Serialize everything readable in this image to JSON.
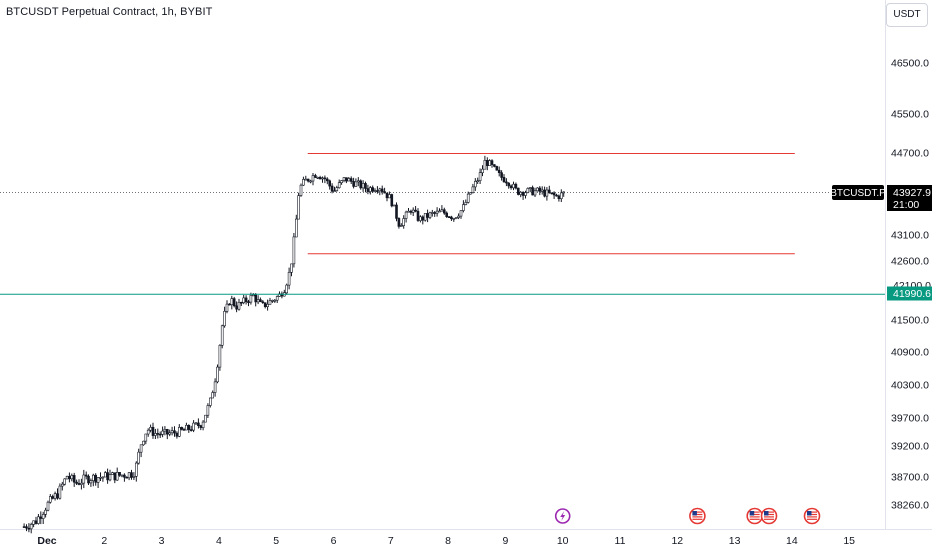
{
  "chart_title": "BTCUSDT Perpetual Contract, 1h, BYBIT",
  "currency_label": "USDT",
  "symbol_tag": "BTCUSDT.P",
  "last_price": "43927.9",
  "countdown": "21:00",
  "support_price": "41990.6",
  "partial_label": "42100.0",
  "colors": {
    "candle": "#131722",
    "resistance_line": "#e53935",
    "support_line": "#089981",
    "price_tag_bg": "#000000",
    "axis_text": "#131722",
    "axis_border": "#e0e3eb",
    "flash_event": "#9c27b0",
    "flag_event": "#e53935"
  },
  "events": {
    "flash_icon": "lightning-icon",
    "flag_icon": "us-flag-icon"
  },
  "chart_data": {
    "type": "candlestick",
    "timeframe": "1h",
    "y_ticks": [
      46500,
      45500,
      44700,
      43100,
      42600,
      41500,
      40900,
      40300,
      39700,
      39200,
      38700,
      38260
    ],
    "y_tick_labels": [
      "46500.0",
      "45500.0",
      "44700.0",
      "43100.0",
      "42600.0",
      "41500.0",
      "40900.0",
      "40300.0",
      "39700.0",
      "39200.0",
      "38700.0",
      "38260.0"
    ],
    "x_tick_labels": [
      "Dec",
      "2",
      "3",
      "4",
      "5",
      "6",
      "7",
      "8",
      "9",
      "10",
      "11",
      "12",
      "13",
      "14",
      "15"
    ],
    "x_tick_days": [
      1,
      2,
      3,
      4,
      5,
      6,
      7,
      8,
      9,
      10,
      11,
      12,
      13,
      14,
      15
    ],
    "horizontal_levels": [
      {
        "label": "resistance",
        "price": 44700,
        "from_day": 5.55,
        "to_day": 14.05
      },
      {
        "label": "range-support",
        "price": 42750,
        "from_day": 5.55,
        "to_day": 14.05
      },
      {
        "label": "support",
        "price": 41990.6,
        "full_width": true
      }
    ],
    "event_markers": [
      {
        "type": "flash",
        "day": 10.0
      },
      {
        "type": "flag",
        "day": 12.35
      },
      {
        "type": "flag",
        "day": 13.35
      },
      {
        "type": "flag",
        "day": 13.6
      },
      {
        "type": "flag",
        "day": 14.35
      }
    ],
    "price_anchors": [
      [
        0.6,
        37920
      ],
      [
        0.8,
        38000
      ],
      [
        1.0,
        38260
      ],
      [
        1.2,
        38450
      ],
      [
        1.35,
        38720
      ],
      [
        1.5,
        38600
      ],
      [
        1.7,
        38680
      ],
      [
        1.9,
        38700
      ],
      [
        2.2,
        38720
      ],
      [
        2.5,
        38760
      ],
      [
        2.55,
        38850
      ],
      [
        2.65,
        39280
      ],
      [
        2.75,
        39500
      ],
      [
        2.9,
        39420
      ],
      [
        3.1,
        39420
      ],
      [
        3.3,
        39450
      ],
      [
        3.5,
        39520
      ],
      [
        3.7,
        39600
      ],
      [
        3.85,
        40000
      ],
      [
        3.95,
        40500
      ],
      [
        4.0,
        40900
      ],
      [
        4.05,
        41350
      ],
      [
        4.1,
        41600
      ],
      [
        4.2,
        41900
      ],
      [
        4.3,
        41750
      ],
      [
        4.45,
        41850
      ],
      [
        4.6,
        41950
      ],
      [
        4.75,
        41750
      ],
      [
        4.9,
        41850
      ],
      [
        5.05,
        41950
      ],
      [
        5.15,
        42100
      ],
      [
        5.25,
        42450
      ],
      [
        5.3,
        42900
      ],
      [
        5.35,
        43400
      ],
      [
        5.4,
        44000
      ],
      [
        5.5,
        44150
      ],
      [
        5.7,
        44300
      ],
      [
        5.85,
        44200
      ],
      [
        6.0,
        43950
      ],
      [
        6.2,
        44200
      ],
      [
        6.4,
        44100
      ],
      [
        6.6,
        44000
      ],
      [
        6.8,
        44050
      ],
      [
        7.0,
        43800
      ],
      [
        7.15,
        43300
      ],
      [
        7.25,
        43450
      ],
      [
        7.35,
        43600
      ],
      [
        7.5,
        43400
      ],
      [
        7.7,
        43500
      ],
      [
        7.9,
        43550
      ],
      [
        8.1,
        43450
      ],
      [
        8.25,
        43600
      ],
      [
        8.4,
        43950
      ],
      [
        8.55,
        44250
      ],
      [
        8.65,
        44550
      ],
      [
        8.75,
        44450
      ],
      [
        8.9,
        44250
      ],
      [
        9.05,
        44150
      ],
      [
        9.2,
        43950
      ],
      [
        9.4,
        43950
      ],
      [
        9.6,
        43950
      ],
      [
        9.75,
        43900
      ],
      [
        9.9,
        43850
      ],
      [
        10.05,
        43927.9
      ]
    ]
  }
}
